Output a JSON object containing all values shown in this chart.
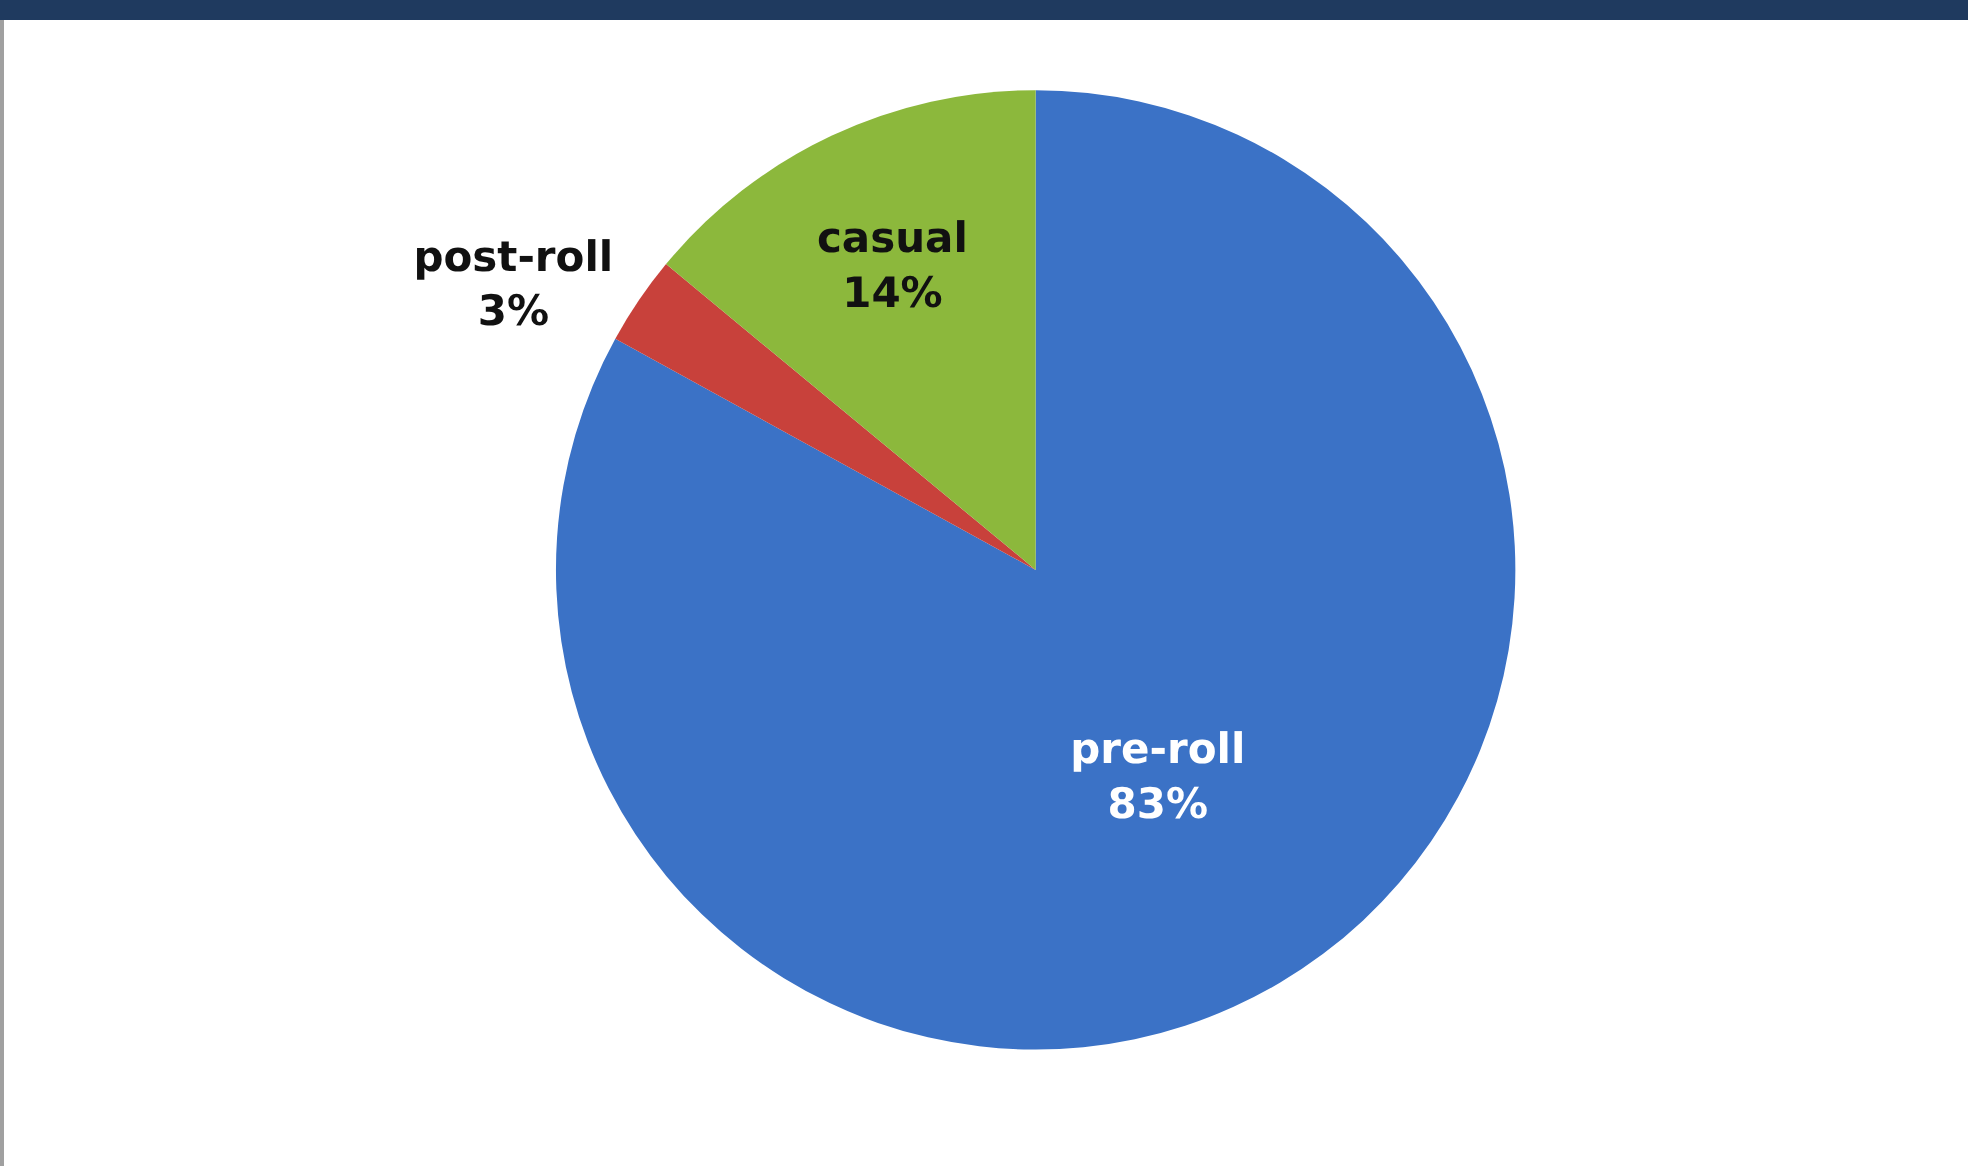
{
  "chart_data": {
    "type": "pie",
    "categories": [
      "pre-roll",
      "post-roll",
      "casual"
    ],
    "values": [
      83,
      3,
      14
    ],
    "value_labels": [
      "83%",
      "3%",
      "14%"
    ],
    "colors": [
      "#3b72c6",
      "#c8413b",
      "#8cb83c"
    ],
    "legend": false
  }
}
